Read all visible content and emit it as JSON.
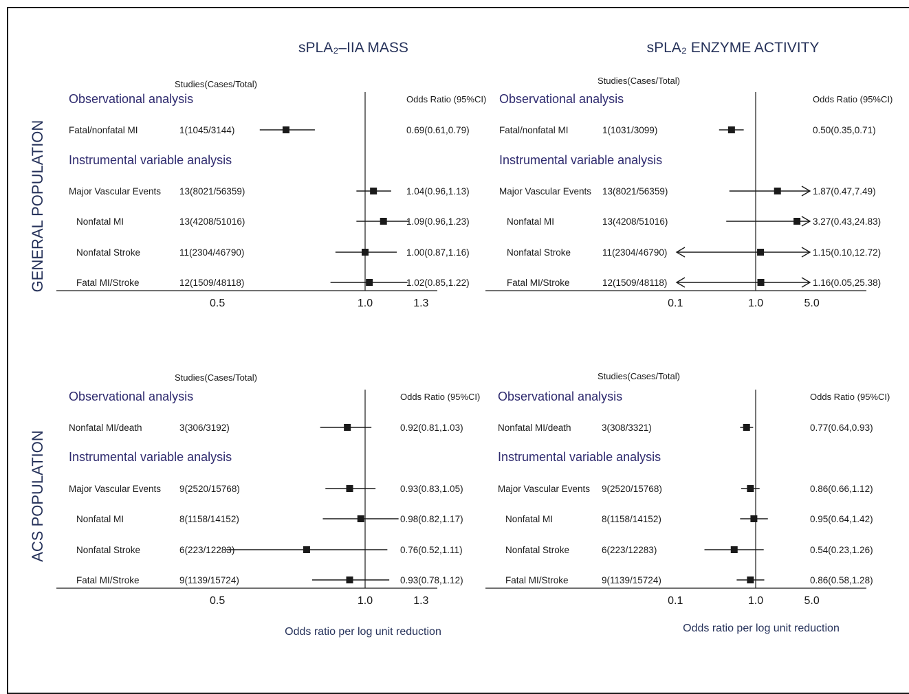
{
  "colors": {
    "header": "#2e2a6e",
    "text": "#1a1a1a",
    "title": "#26325a"
  },
  "row_labels": {
    "general": "GENERAL POPULATION",
    "acs": "ACS POPULATION"
  },
  "column_titles": {
    "mass": "sPLA₂–IIA MASS",
    "activity": "sPLA₂ ENZYME ACTIVITY"
  },
  "xlabel": "Odds ratio per log unit reduction",
  "chart_data": [
    {
      "type": "forest",
      "panel": "general-mass",
      "studies_header": "Studies(Cases/Total)",
      "or_header": "Odds Ratio (95%CI)",
      "scale": "log",
      "xlim": [
        0.25,
        1.65
      ],
      "ticks": [
        0.5,
        1.0,
        1.3
      ],
      "tick_labels": [
        "0.5",
        "1.0",
        "1.3"
      ],
      "null_line": 1.0,
      "sections": [
        {
          "title": "Observational analysis",
          "rows": [
            {
              "label": "Fatal/nonfatal MI",
              "studies": "1(1045/3144)",
              "or": 0.69,
              "lo": 0.61,
              "hi": 0.79,
              "text": "0.69(0.61,0.79)",
              "indent": false
            }
          ]
        },
        {
          "title": "Instrumental variable analysis",
          "rows": [
            {
              "label": "Major Vascular Events",
              "studies": "13(8021/56359)",
              "or": 1.04,
              "lo": 0.96,
              "hi": 1.13,
              "text": "1.04(0.96,1.13)",
              "indent": false
            },
            {
              "label": "Nonfatal MI",
              "studies": "13(4208/51016)",
              "or": 1.09,
              "lo": 0.96,
              "hi": 1.23,
              "text": "1.09(0.96,1.23)",
              "indent": true
            },
            {
              "label": "Nonfatal Stroke",
              "studies": "11(2304/46790)",
              "or": 1.0,
              "lo": 0.87,
              "hi": 1.16,
              "text": "1.00(0.87,1.16)",
              "indent": true
            },
            {
              "label": "Fatal MI/Stroke",
              "studies": "12(1509/48118)",
              "or": 1.02,
              "lo": 0.85,
              "hi": 1.22,
              "text": "1.02(0.85,1.22)",
              "indent": true
            }
          ]
        }
      ]
    },
    {
      "type": "forest",
      "panel": "general-activity",
      "studies_header": "Studies(Cases/Total)",
      "or_header": "Odds Ratio (95%CI)",
      "scale": "log",
      "xlim": [
        0.0085,
        14
      ],
      "ticks": [
        0.1,
        1.0,
        5.0
      ],
      "tick_labels": [
        "0.1",
        "1.0",
        "5.0"
      ],
      "null_line": 1.0,
      "sections": [
        {
          "title": "Observational analysis",
          "rows": [
            {
              "label": "Fatal/nonfatal MI",
              "studies": "1(1031/3099)",
              "or": 0.5,
              "lo": 0.35,
              "hi": 0.71,
              "text": "0.50(0.35,0.71)",
              "indent": false
            }
          ]
        },
        {
          "title": "Instrumental variable analysis",
          "rows": [
            {
              "label": "Major Vascular Events",
              "studies": "13(8021/56359)",
              "or": 1.87,
              "lo": 0.47,
              "hi": 7.49,
              "text": "1.87(0.47,7.49)",
              "indent": false
            },
            {
              "label": "Nonfatal MI",
              "studies": "13(4208/51016)",
              "or": 3.27,
              "lo": 0.43,
              "hi": 24.83,
              "text": "3.27(0.43,24.83)",
              "indent": true
            },
            {
              "label": "Nonfatal Stroke",
              "studies": "11(2304/46790)",
              "or": 1.15,
              "lo": 0.1,
              "hi": 12.72,
              "text": "1.15(0.10,12.72)",
              "indent": true
            },
            {
              "label": "Fatal MI/Stroke",
              "studies": "12(1509/48118)",
              "or": 1.16,
              "lo": 0.05,
              "hi": 25.38,
              "text": "1.16(0.05,25.38)",
              "indent": true
            }
          ]
        }
      ]
    },
    {
      "type": "forest",
      "panel": "acs-mass",
      "studies_header": "Studies(Cases/Total)",
      "or_header": "Odds Ratio (95%CI)",
      "scale": "log",
      "xlim": [
        0.25,
        1.65
      ],
      "ticks": [
        0.5,
        1.0,
        1.3
      ],
      "tick_labels": [
        "0.5",
        "1.0",
        "1.3"
      ],
      "null_line": 1.0,
      "sections": [
        {
          "title": "Observational analysis",
          "rows": [
            {
              "label": "Nonfatal MI/death",
              "studies": "3(306/3192)",
              "or": 0.92,
              "lo": 0.81,
              "hi": 1.03,
              "text": "0.92(0.81,1.03)",
              "indent": false
            }
          ]
        },
        {
          "title": "Instrumental variable analysis",
          "rows": [
            {
              "label": "Major Vascular Events",
              "studies": "9(2520/15768)",
              "or": 0.93,
              "lo": 0.83,
              "hi": 1.05,
              "text": "0.93(0.83,1.05)",
              "indent": false
            },
            {
              "label": "Nonfatal MI",
              "studies": "8(1158/14152)",
              "or": 0.98,
              "lo": 0.82,
              "hi": 1.17,
              "text": "0.98(0.82,1.17)",
              "indent": true
            },
            {
              "label": "Nonfatal Stroke",
              "studies": "6(223/12283)",
              "or": 0.76,
              "lo": 0.52,
              "hi": 1.11,
              "text": "0.76(0.52,1.11)",
              "indent": true
            },
            {
              "label": "Fatal MI/Stroke",
              "studies": "9(1139/15724)",
              "or": 0.93,
              "lo": 0.78,
              "hi": 1.12,
              "text": "0.93(0.78,1.12)",
              "indent": true
            }
          ]
        }
      ]
    },
    {
      "type": "forest",
      "panel": "acs-activity",
      "studies_header": "Studies(Cases/Total)",
      "or_header": "Odds Ratio (95%CI)",
      "scale": "log",
      "xlim": [
        0.0085,
        14
      ],
      "ticks": [
        0.1,
        1.0,
        5.0
      ],
      "tick_labels": [
        "0.1",
        "1.0",
        "5.0"
      ],
      "null_line": 1.0,
      "sections": [
        {
          "title": "Observational analysis",
          "rows": [
            {
              "label": "Nonfatal MI/death",
              "studies": "3(308/3321)",
              "or": 0.77,
              "lo": 0.64,
              "hi": 0.93,
              "text": "0.77(0.64,0.93)",
              "indent": false
            }
          ]
        },
        {
          "title": "Instrumental variable analysis",
          "rows": [
            {
              "label": "Major Vascular Events",
              "studies": "9(2520/15768)",
              "or": 0.86,
              "lo": 0.66,
              "hi": 1.12,
              "text": "0.86(0.66,1.12)",
              "indent": false
            },
            {
              "label": "Nonfatal MI",
              "studies": "8(1158/14152)",
              "or": 0.95,
              "lo": 0.64,
              "hi": 1.42,
              "text": "0.95(0.64,1.42)",
              "indent": true
            },
            {
              "label": "Nonfatal Stroke",
              "studies": "6(223/12283)",
              "or": 0.54,
              "lo": 0.23,
              "hi": 1.26,
              "text": "0.54(0.23,1.26)",
              "indent": true
            },
            {
              "label": "Fatal MI/Stroke",
              "studies": "9(1139/15724)",
              "or": 0.86,
              "lo": 0.58,
              "hi": 1.28,
              "text": "0.86(0.58,1.28)",
              "indent": true
            }
          ]
        }
      ]
    }
  ]
}
